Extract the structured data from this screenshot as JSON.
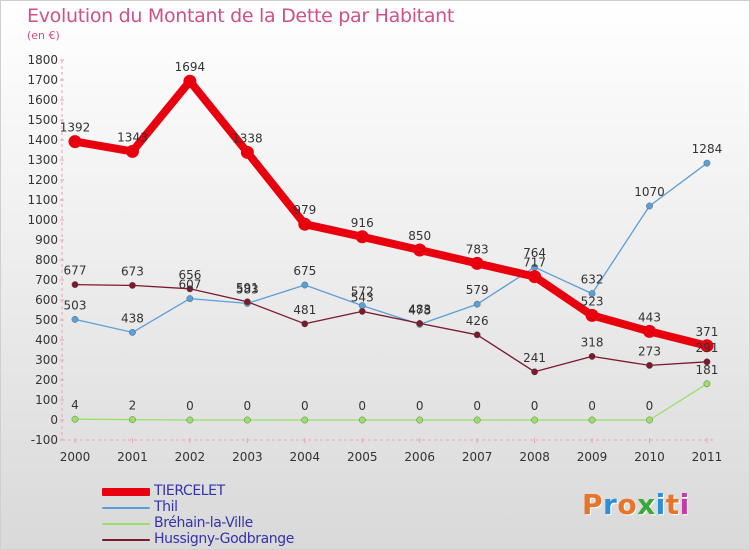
{
  "title": "Evolution du Montant de la Dette par Habitant",
  "subtitle": "(en €)",
  "logo": {
    "text": "Proxiti",
    "colors": [
      "#e8742a",
      "#2b8fd6",
      "#e8742a",
      "#3aa83a",
      "#2b8fd6",
      "#e8742a",
      "#c43aa8"
    ]
  },
  "chart_data": {
    "type": "line",
    "categories": [
      "2000",
      "2001",
      "2002",
      "2003",
      "2004",
      "2005",
      "2006",
      "2007",
      "2008",
      "2009",
      "2010",
      "2011"
    ],
    "ylim": [
      -100,
      1800
    ],
    "yticks": [
      -100,
      0,
      100,
      200,
      300,
      400,
      500,
      600,
      700,
      800,
      900,
      1000,
      1100,
      1200,
      1300,
      1400,
      1500,
      1600,
      1700,
      1800
    ],
    "grid": false,
    "legend_position": "bottom-left",
    "series": [
      {
        "name": "TIERCELET",
        "color": "#e8000f",
        "values": [
          1392,
          1343,
          1694,
          1338,
          979,
          916,
          850,
          783,
          717,
          523,
          443,
          371
        ],
        "labels": [
          "1392",
          "1343",
          "1694",
          "1338",
          "979",
          "916",
          "850",
          "783",
          "717",
          "523",
          "443",
          "371"
        ]
      },
      {
        "name": "Thil",
        "color": "#5a9fd8",
        "values": [
          503,
          438,
          607,
          583,
          675,
          572,
          478,
          579,
          764,
          632,
          1070,
          1284
        ],
        "labels": [
          "503",
          "438",
          "607",
          "583",
          "675",
          "572",
          "478",
          "579",
          "764",
          "632",
          "1070",
          "1284"
        ]
      },
      {
        "name": "Bréhain-la-Ville",
        "color": "#99e066",
        "values": [
          4,
          2,
          0,
          0,
          0,
          0,
          0,
          0,
          0,
          0,
          0,
          181
        ],
        "labels": [
          "4",
          "2",
          "0",
          "0",
          "0",
          "0",
          "0",
          "0",
          "0",
          "0",
          "0",
          "181"
        ]
      },
      {
        "name": "Hussigny-Godbrange",
        "color": "#7a1a2a",
        "values": [
          677,
          673,
          656,
          591,
          481,
          543,
          483,
          426,
          241,
          318,
          273,
          291
        ],
        "labels": [
          "677",
          "673",
          "656",
          "591",
          "481",
          "543",
          "483",
          "426",
          "241",
          "318",
          "273",
          "291"
        ]
      }
    ]
  }
}
